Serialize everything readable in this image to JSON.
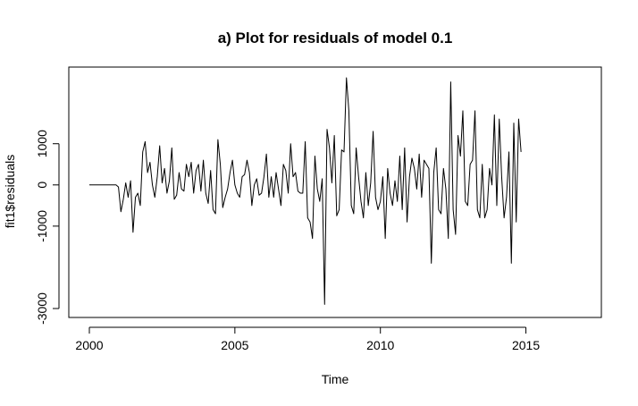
{
  "chart_data": {
    "type": "line",
    "title": "a) Plot for residuals of model 0.1",
    "xlabel": "Time",
    "ylabel": "fit1$residuals",
    "xlim": [
      2000,
      2016.917
    ],
    "ylim": [
      -3000,
      2600
    ],
    "xticks": [
      2000,
      2005,
      2010,
      2015
    ],
    "yticks": [
      -3000,
      -1000,
      0,
      1000
    ],
    "yticks_labeled": [
      "-3000",
      "-1000",
      "0",
      "1000"
    ],
    "grid": false,
    "line_color": "#000000",
    "series": [
      {
        "x_start": 2000,
        "x_step": 0.0833333,
        "values": [
          0,
          0,
          0,
          0,
          0,
          0,
          0,
          0,
          0,
          0,
          0,
          0,
          -50,
          -650,
          -350,
          50,
          -300,
          100,
          -1150,
          -300,
          -200,
          -500,
          800,
          1050,
          300,
          550,
          0,
          -300,
          200,
          950,
          50,
          400,
          -200,
          100,
          900,
          -350,
          -250,
          300,
          -100,
          -150,
          500,
          200,
          550,
          -200,
          350,
          500,
          -150,
          600,
          -200,
          -450,
          350,
          -600,
          -700,
          1100,
          500,
          -550,
          -300,
          -100,
          300,
          600,
          0,
          -200,
          -300,
          200,
          250,
          600,
          300,
          -500,
          0,
          150,
          -250,
          -200,
          200,
          750,
          -300,
          200,
          -300,
          300,
          -100,
          -500,
          500,
          350,
          -200,
          1000,
          200,
          300,
          -150,
          -200,
          -200,
          1050,
          -800,
          -900,
          -1300,
          700,
          -100,
          -400,
          150,
          -2900,
          1350,
          900,
          50,
          1200,
          -750,
          -600,
          850,
          800,
          2600,
          1800,
          -500,
          -700,
          900,
          200,
          -400,
          -800,
          300,
          -500,
          50,
          1300,
          -300,
          -600,
          -400,
          200,
          -1300,
          400,
          -200,
          -500,
          100,
          -400,
          700,
          -600,
          900,
          -900,
          200,
          650,
          400,
          -100,
          750,
          -300,
          600,
          500,
          400,
          -1900,
          300,
          900,
          -600,
          -700,
          400,
          -100,
          -1300,
          2500,
          -600,
          -1200,
          1200,
          700,
          1800,
          -400,
          -500,
          500,
          600,
          1800,
          -600,
          -800,
          500,
          -800,
          -600,
          400,
          0,
          1700,
          -500,
          1600,
          200,
          -800,
          -300,
          800,
          -1900,
          1500,
          -900,
          1600,
          800
        ]
      }
    ]
  }
}
